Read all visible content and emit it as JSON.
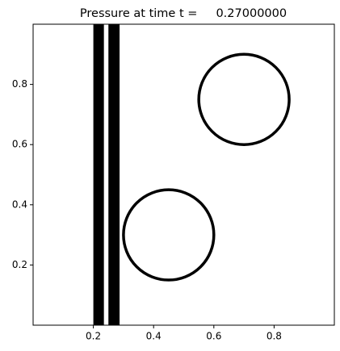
{
  "chart_data": {
    "type": "contour",
    "title": "Pressure at time t =     0.27000000",
    "xlim": [
      0,
      1
    ],
    "ylim": [
      0,
      1
    ],
    "xticks": [
      0.2,
      0.4,
      0.6,
      0.8
    ],
    "yticks": [
      0.2,
      0.4,
      0.6,
      0.8
    ],
    "color": "#000000",
    "bands": [
      [
        0.2,
        0.235
      ],
      [
        0.25,
        0.287
      ]
    ],
    "circles": [
      {
        "x": 0.7,
        "y": 0.75,
        "r": 0.15
      },
      {
        "x": 0.45,
        "y": 0.3,
        "r": 0.15
      }
    ]
  }
}
